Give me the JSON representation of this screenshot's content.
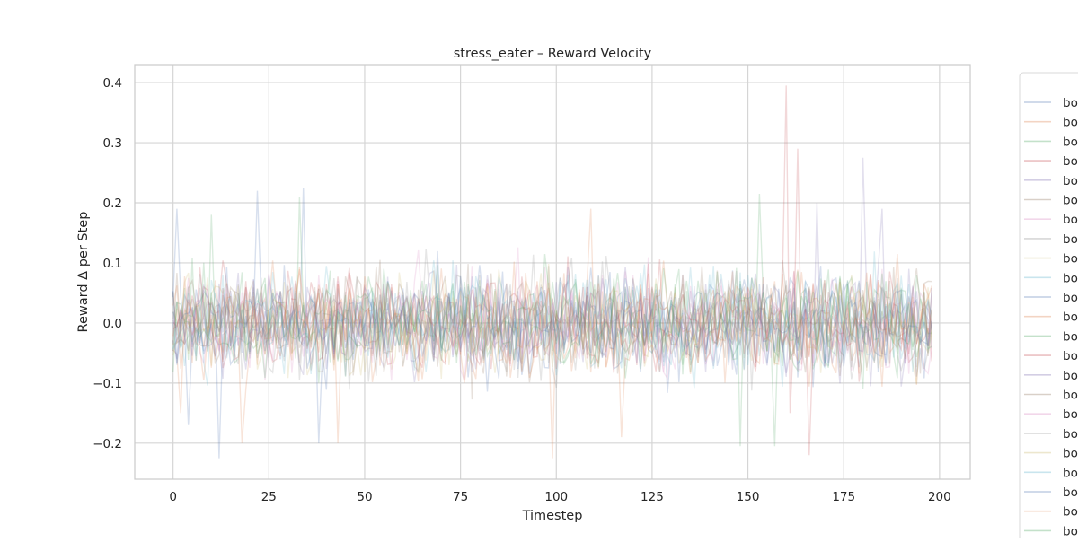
{
  "chart_data": {
    "type": "line",
    "title": "stress_eater – Reward Velocity",
    "xlabel": "Timestep",
    "ylabel": "Reward Δ per Step",
    "xlim": [
      -10,
      208
    ],
    "ylim": [
      -0.26,
      0.43
    ],
    "xticks": [
      0,
      25,
      50,
      75,
      100,
      125,
      150,
      175,
      200
    ],
    "xtick_labels": [
      "0",
      "25",
      "50",
      "75",
      "100",
      "125",
      "150",
      "175",
      "200"
    ],
    "yticks": [
      -0.2,
      -0.1,
      0.0,
      0.1,
      0.2,
      0.3,
      0.4
    ],
    "ytick_labels": [
      "−0.2",
      "−0.1",
      "0.0",
      "0.1",
      "0.2",
      "0.3",
      "0.4"
    ],
    "grid": true,
    "legend": {
      "placement": "outside-right",
      "entries": [
        "bo",
        "bo",
        "bo",
        "bo",
        "bo",
        "bo",
        "bo",
        "bo",
        "bo",
        "bo",
        "bo",
        "bo",
        "bo",
        "bo",
        "bo",
        "bo",
        "bo",
        "bo",
        "bo",
        "bo",
        "bo",
        "bo",
        "bo"
      ]
    },
    "series_colors": [
      "#4c72b0",
      "#dd8452",
      "#55a868",
      "#c44e52",
      "#8172b3",
      "#937860",
      "#da8bc3",
      "#8c8c8c",
      "#ccb974",
      "#64b5cd"
    ],
    "series_count": 23,
    "x_start": 0,
    "x_end": 198,
    "typical_spread": [
      -0.1,
      0.1
    ],
    "series": [
      {
        "name": "bo",
        "spikes": [
          [
            1,
            0.19
          ],
          [
            4,
            -0.17
          ],
          [
            12,
            -0.225
          ],
          [
            22,
            0.22
          ],
          [
            34,
            0.225
          ],
          [
            38,
            -0.2
          ]
        ]
      },
      {
        "name": "bo",
        "spikes": [
          [
            2,
            -0.15
          ],
          [
            18,
            -0.2
          ],
          [
            43,
            -0.2
          ],
          [
            99,
            -0.225
          ],
          [
            109,
            0.19
          ],
          [
            117,
            -0.19
          ]
        ]
      },
      {
        "name": "bo",
        "spikes": [
          [
            10,
            0.18
          ],
          [
            33,
            0.21
          ],
          [
            148,
            -0.205
          ],
          [
            153,
            0.215
          ],
          [
            157,
            -0.205
          ]
        ]
      },
      {
        "name": "bo",
        "spikes": [
          [
            160,
            0.395
          ],
          [
            161,
            -0.15
          ],
          [
            163,
            0.29
          ],
          [
            166,
            -0.22
          ]
        ]
      },
      {
        "name": "bo",
        "spikes": [
          [
            168,
            0.2
          ],
          [
            180,
            0.275
          ],
          [
            185,
            0.19
          ]
        ]
      }
    ]
  }
}
